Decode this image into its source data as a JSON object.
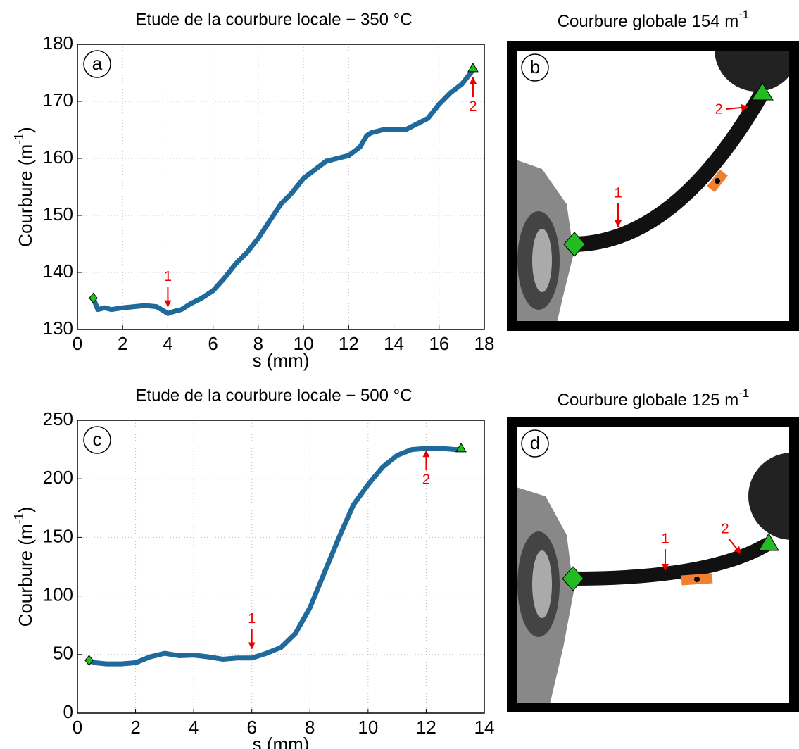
{
  "chart_data": [
    {
      "type": "line",
      "panel": "a",
      "title": "Etude de la courbure locale − 350 °C",
      "xlabel": "s (mm)",
      "ylabel": [
        "Courbure (m",
        "-1",
        ")"
      ],
      "xlim": [
        0,
        18
      ],
      "xticks": [
        0,
        2,
        4,
        6,
        8,
        10,
        12,
        14,
        16,
        18
      ],
      "ylim": [
        130,
        180
      ],
      "yticks": [
        130,
        140,
        150,
        160,
        170,
        180
      ],
      "grid": true,
      "series": [
        {
          "color": "#1f6a9a",
          "x": [
            0.7,
            0.8,
            0.9,
            1.2,
            1.5,
            2,
            2.5,
            3,
            3.5,
            3.8,
            4,
            4.3,
            4.6,
            5,
            5.5,
            6,
            6.5,
            7,
            7.5,
            8,
            8.5,
            9,
            9.5,
            10,
            10.5,
            11,
            11.5,
            12,
            12.5,
            12.8,
            13,
            13.5,
            14,
            14.5,
            15,
            15.5,
            16,
            16.5,
            17,
            17.5
          ],
          "values": [
            135.5,
            134.5,
            133.5,
            133.8,
            133.5,
            133.8,
            134,
            134.2,
            134,
            133.3,
            132.8,
            133.2,
            133.5,
            134.5,
            135.5,
            136.8,
            139,
            141.5,
            143.5,
            146,
            149,
            152,
            154,
            156.5,
            158,
            159.5,
            160,
            160.5,
            162,
            164,
            164.5,
            165,
            165,
            165,
            166,
            167,
            169.5,
            171.5,
            173,
            175.5
          ]
        }
      ],
      "markers": [
        {
          "shape": "diamond",
          "x": 0.7,
          "y": 135.5,
          "color": "#22bb22"
        },
        {
          "shape": "triangle",
          "x": 17.5,
          "y": 175.8,
          "color": "#22bb22"
        }
      ],
      "annotations": [
        {
          "text": "1",
          "x": 4,
          "y": 134,
          "direction": "down"
        },
        {
          "text": "2",
          "x": 17.5,
          "y": 174.2,
          "direction": "up"
        }
      ]
    },
    {
      "type": "line",
      "panel": "c",
      "title": "Etude de la courbure locale − 500 °C",
      "xlabel": "s (mm)",
      "ylabel": [
        "Courbure (m",
        "-1",
        ")"
      ],
      "xlim": [
        0,
        14
      ],
      "xticks": [
        0,
        2,
        4,
        6,
        8,
        10,
        12,
        14
      ],
      "ylim": [
        0,
        250
      ],
      "yticks": [
        0,
        50,
        100,
        150,
        200,
        250
      ],
      "grid": true,
      "series": [
        {
          "color": "#1f6a9a",
          "x": [
            0.4,
            0.6,
            1,
            1.5,
            2,
            2.5,
            3,
            3.5,
            4,
            4.5,
            5,
            5.5,
            6,
            6.5,
            7,
            7.5,
            8,
            8.5,
            9,
            9.5,
            10,
            10.5,
            11,
            11.5,
            12,
            12.5,
            13,
            13.2
          ],
          "values": [
            45,
            43,
            42,
            42,
            43,
            48,
            51,
            49,
            49.5,
            48,
            46,
            47,
            47,
            51,
            56,
            68,
            90,
            120,
            150,
            178,
            195,
            210,
            220,
            225,
            226,
            226,
            225,
            225
          ]
        }
      ],
      "markers": [
        {
          "shape": "diamond",
          "x": 0.4,
          "y": 45,
          "color": "#22bb22"
        },
        {
          "shape": "triangle",
          "x": 13.2,
          "y": 226,
          "color": "#22bb22"
        }
      ],
      "annotations": [
        {
          "text": "1",
          "x": 6,
          "y": 55,
          "direction": "down"
        },
        {
          "text": "2",
          "x": 12,
          "y": 224,
          "direction": "up"
        }
      ]
    }
  ],
  "photos": [
    {
      "panel": "b",
      "title": [
        "Courbure globale 154 m",
        "-1"
      ],
      "labels": [
        "1",
        "2"
      ]
    },
    {
      "panel": "d",
      "title": [
        "Courbure globale 125 m",
        "-1"
      ],
      "labels": [
        "1",
        "2"
      ]
    }
  ]
}
